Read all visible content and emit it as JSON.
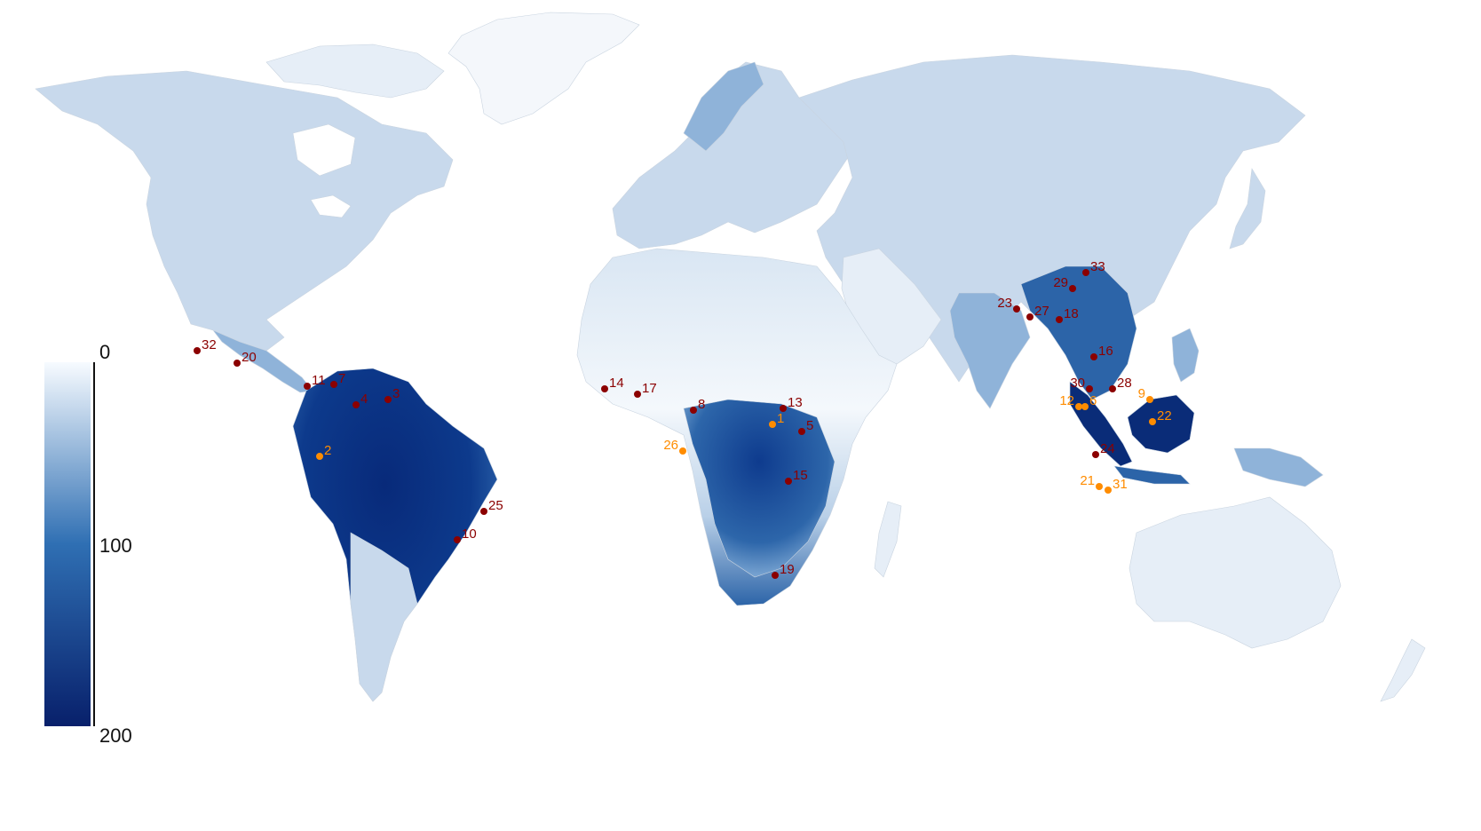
{
  "legend": {
    "ticks": [
      "0",
      "100",
      "200"
    ],
    "color_min": "#f7fbff",
    "color_mid": "#2f6fb3",
    "color_max": "#08206b"
  },
  "colors": {
    "land_pale": "#e6eef7",
    "land_light": "#c8d9ec",
    "land_mid": "#8fb3d9",
    "land_dark": "#2c64a8",
    "land_darkest": "#0a2c78",
    "ice": "#f4f7fb",
    "site_red": "#8b0000",
    "site_orange": "#ff8c00"
  },
  "sites": [
    {
      "id": "1",
      "color": "orange"
    },
    {
      "id": "2",
      "color": "orange"
    },
    {
      "id": "3",
      "color": "red"
    },
    {
      "id": "4",
      "color": "red"
    },
    {
      "id": "5",
      "color": "red"
    },
    {
      "id": "6",
      "color": "orange"
    },
    {
      "id": "7",
      "color": "red"
    },
    {
      "id": "8",
      "color": "red"
    },
    {
      "id": "9",
      "color": "orange"
    },
    {
      "id": "10",
      "color": "red"
    },
    {
      "id": "11",
      "color": "red"
    },
    {
      "id": "12",
      "color": "orange"
    },
    {
      "id": "13",
      "color": "red"
    },
    {
      "id": "14",
      "color": "red"
    },
    {
      "id": "15",
      "color": "red"
    },
    {
      "id": "16",
      "color": "red"
    },
    {
      "id": "17",
      "color": "red"
    },
    {
      "id": "18",
      "color": "red"
    },
    {
      "id": "19",
      "color": "red"
    },
    {
      "id": "20",
      "color": "red"
    },
    {
      "id": "21",
      "color": "orange"
    },
    {
      "id": "22",
      "color": "orange"
    },
    {
      "id": "23",
      "color": "red"
    },
    {
      "id": "24",
      "color": "red"
    },
    {
      "id": "25",
      "color": "red"
    },
    {
      "id": "26",
      "color": "orange"
    },
    {
      "id": "27",
      "color": "red"
    },
    {
      "id": "28",
      "color": "red"
    },
    {
      "id": "29",
      "color": "red"
    },
    {
      "id": "30",
      "color": "red"
    },
    {
      "id": "31",
      "color": "orange"
    },
    {
      "id": "32",
      "color": "red"
    },
    {
      "id": "33",
      "color": "red"
    }
  ]
}
